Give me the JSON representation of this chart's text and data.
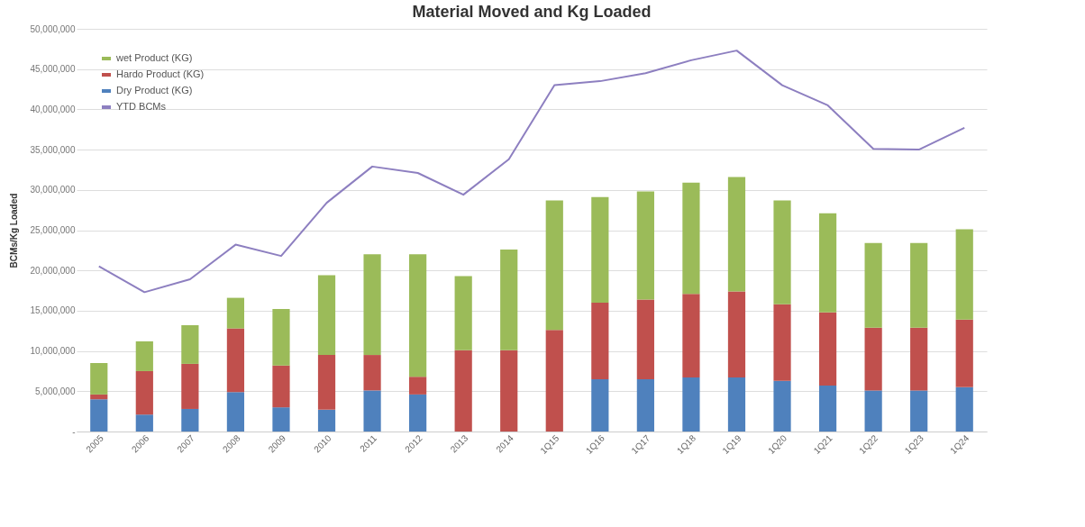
{
  "chart_data": {
    "type": "bar",
    "title": "Material Moved and Kg Loaded",
    "ylabel": "BCMs/Kg Loaded",
    "stacked": true,
    "categories": [
      "2005",
      "2006",
      "2007",
      "2008",
      "2009",
      "2010",
      "2011",
      "2012",
      "2013",
      "2014",
      "1Q15",
      "1Q16",
      "1Q17",
      "1Q18",
      "1Q19",
      "1Q20",
      "1Q21",
      "1Q22",
      "1Q23",
      "1Q24"
    ],
    "series": [
      {
        "name": "Dry Product (KG)",
        "color": "#4f81bd",
        "values": [
          4000000,
          2100000,
          2800000,
          4900000,
          3000000,
          2700000,
          5100000,
          4600000,
          null,
          null,
          null,
          6500000,
          6500000,
          6700000,
          6700000,
          6300000,
          5700000,
          5100000,
          5100000,
          5500000
        ]
      },
      {
        "name": "Hardo Product (KG)",
        "color": "#c0504d",
        "values": [
          600000,
          5400000,
          5600000,
          7900000,
          5200000,
          6800000,
          4400000,
          2200000,
          10100000,
          10100000,
          12600000,
          9500000,
          9900000,
          10400000,
          10700000,
          9500000,
          9100000,
          7800000,
          7800000,
          8400000
        ]
      },
      {
        "name": "wet Product (KG)",
        "color": "#9bbb59",
        "values": [
          3900000,
          3700000,
          4800000,
          3800000,
          7000000,
          9900000,
          12500000,
          15200000,
          9200000,
          12500000,
          16100000,
          13100000,
          13400000,
          13800000,
          14200000,
          12900000,
          12300000,
          10500000,
          10500000,
          11200000
        ]
      },
      {
        "name": "YTD BCMs",
        "type": "line",
        "color": "#8d7fc0",
        "values": [
          20500000,
          17300000,
          18900000,
          23200000,
          21800000,
          28400000,
          32900000,
          32100000,
          29400000,
          33800000,
          43000000,
          43500000,
          44500000,
          46100000,
          47300000,
          43000000,
          40500000,
          35100000,
          35000000,
          37700000
        ]
      }
    ],
    "ylim": [
      0,
      50000000
    ],
    "yticks": [
      {
        "value": 0,
        "label": "-"
      },
      {
        "value": 5000000,
        "label": "5,000,000"
      },
      {
        "value": 10000000,
        "label": "10,000,000"
      },
      {
        "value": 15000000,
        "label": "15,000,000"
      },
      {
        "value": 20000000,
        "label": "20,000,000"
      },
      {
        "value": 25000000,
        "label": "25,000,000"
      },
      {
        "value": 30000000,
        "label": "30,000,000"
      },
      {
        "value": 35000000,
        "label": "35,000,000"
      },
      {
        "value": 40000000,
        "label": "40,000,000"
      },
      {
        "value": 45000000,
        "label": "45,000,000"
      },
      {
        "value": 50000000,
        "label": "50,000,000"
      }
    ],
    "grid": "y",
    "legend": "top left"
  }
}
